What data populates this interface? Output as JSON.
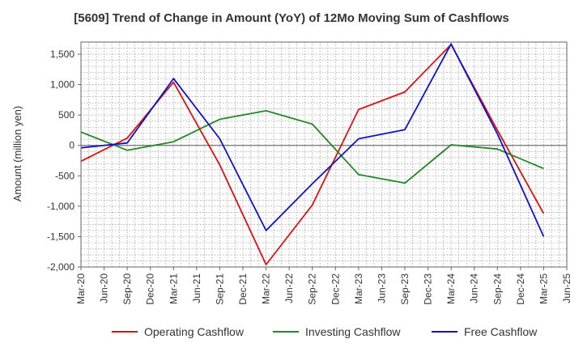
{
  "chart_data": {
    "type": "line",
    "title": "[5609]  Trend of Change in Amount (YoY) of 12Mo Moving Sum of Cashflows",
    "xlabel": "",
    "ylabel": "Amount (million yen)",
    "ylim": [
      -2000,
      1700
    ],
    "yticks": [
      1500,
      1000,
      500,
      0,
      -500,
      -1000,
      -1500,
      -2000
    ],
    "ytick_labels": [
      "1,500",
      "1,000",
      "500",
      "0",
      "-500",
      "-1,000",
      "-1,500",
      "-2,000"
    ],
    "categories": [
      "Mar-20",
      "Jun-20",
      "Sep-20",
      "Dec-20",
      "Mar-21",
      "Jun-21",
      "Sep-21",
      "Dec-21",
      "Mar-22",
      "Jun-22",
      "Sep-22",
      "Dec-22",
      "Mar-23",
      "Jun-23",
      "Sep-23",
      "Dec-23",
      "Mar-24",
      "Jun-24",
      "Sep-24",
      "Dec-24",
      "Mar-25",
      "Jun-25"
    ],
    "grid": true,
    "legend_position": "bottom",
    "series": [
      {
        "name": "Operating Cashflow",
        "color": "#dd1111",
        "values": [
          -260,
          null,
          120,
          null,
          1040,
          null,
          -320,
          null,
          -1960,
          null,
          -980,
          null,
          590,
          null,
          880,
          null,
          1660,
          null,
          250,
          null,
          -1120,
          null
        ]
      },
      {
        "name": "Investing Cashflow",
        "color": "#228822",
        "values": [
          220,
          null,
          -80,
          null,
          60,
          null,
          430,
          null,
          570,
          null,
          350,
          null,
          -480,
          null,
          -620,
          null,
          10,
          null,
          -60,
          null,
          -380,
          null
        ]
      },
      {
        "name": "Free Cashflow",
        "color": "#1111cc",
        "values": [
          -40,
          null,
          40,
          null,
          1100,
          null,
          110,
          null,
          -1400,
          null,
          -630,
          null,
          110,
          null,
          260,
          null,
          1670,
          null,
          190,
          null,
          -1500,
          null
        ]
      }
    ]
  }
}
